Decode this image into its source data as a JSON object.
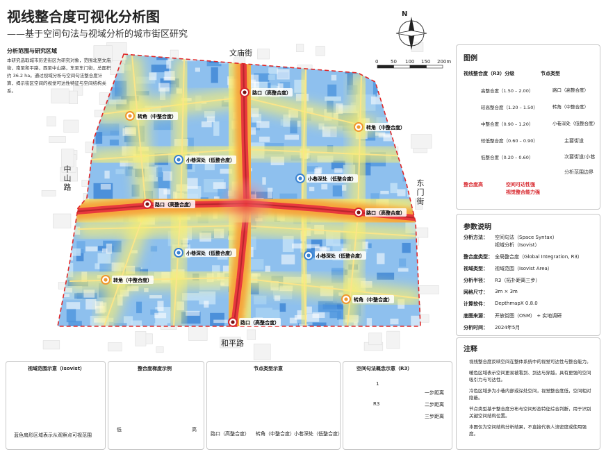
{
  "header": {
    "title": "视线整合度可视化分析图",
    "subtitle": "——基于空间句法与视域分析的城市街区研究"
  },
  "intro": {
    "title": "分析范围与研究区域",
    "text": "本研究选取城市历史街区为研究对象，范围北至文庙街，南至和平路，西至中山路，东至东门街，总面积约 36.2 ha。通过视域分析与空间句法整合度计算，揭示街区空间的视觉可达性特征与空间结构关系。"
  },
  "map": {
    "north": "N",
    "scale": [
      "0",
      "50",
      "100",
      "150",
      "200m"
    ],
    "streets": [
      "文庙街",
      "和平路",
      "中山路",
      "东门街"
    ],
    "nodes": [
      {
        "label": "路口（高整合度）",
        "type": "high"
      },
      {
        "label": "转角（中整合度）",
        "type": "mid"
      },
      {
        "label": "转角（中整合度）",
        "type": "mid"
      },
      {
        "label": "小巷深处（低整合度）",
        "type": "low"
      },
      {
        "label": "小巷深处（低整合度）",
        "type": "low"
      },
      {
        "label": "路口（高整合度）",
        "type": "high"
      },
      {
        "label": "路口（高整合度）",
        "type": "high"
      },
      {
        "label": "小巷深处（低整合度）",
        "type": "low"
      },
      {
        "label": "小巷深处（低整合度）",
        "type": "low"
      },
      {
        "label": "转角（中整合度）",
        "type": "mid"
      },
      {
        "label": "转角（中整合度）",
        "type": "mid"
      },
      {
        "label": "路口（高整合度）",
        "type": "high"
      }
    ]
  },
  "legend": {
    "title": "图例",
    "grade_title": "视线整合度（R3）分级",
    "grades": [
      {
        "label": "高整合度（1.50 – 2.00）",
        "color": "#e8383d"
      },
      {
        "label": "较高整合度（1.20 – 1.50）",
        "color": "#f5a43a"
      },
      {
        "label": "中整合度（0.90 – 1.20）",
        "color": "#f8ee72"
      },
      {
        "label": "较低整合度（0.60 – 0.90）",
        "color": "#9fe2c6"
      },
      {
        "label": "低整合度（0.20 – 0.60）",
        "color": "#4f95dd"
      }
    ],
    "node_title": "节点类型",
    "node_types": [
      {
        "label": "路口（高整合度）",
        "type": "high"
      },
      {
        "label": "转角（中整合度）",
        "type": "mid"
      },
      {
        "label": "小巷深处（低整合度）",
        "type": "low"
      }
    ],
    "lines": [
      "主要街道",
      "次要街道/小巷",
      "分析范围边界"
    ],
    "arrow_from": "整合度高",
    "arrow_to": [
      "空间可达性强",
      "视觉整合能力强"
    ]
  },
  "params": {
    "title": "参数说明",
    "rows": [
      {
        "label": "分析方法：",
        "value": [
          "空间句法（Space Syntax）",
          "视域分析（Isovist）"
        ]
      },
      {
        "label": "整合度类型：",
        "value": [
          "全局整合度（Global Integration, R3）"
        ]
      },
      {
        "label": "视域类型：",
        "value": [
          "视域范围（Isovist Area）"
        ]
      },
      {
        "label": "分析半径：",
        "value": [
          "R3（拓扑距离三步）"
        ]
      },
      {
        "label": "网格尺寸：",
        "value": [
          "3m × 3m"
        ]
      },
      {
        "label": "计算软件：",
        "value": [
          "DepthmapX 0.8.0"
        ]
      },
      {
        "label": "底图来源：",
        "value": [
          "开放街图（OSM） + 实地调研"
        ]
      },
      {
        "label": "分析时间：",
        "value": [
          "2024年5月"
        ]
      }
    ]
  },
  "notes": {
    "title": "注释",
    "items": [
      "视线整合度反映空间在整体系统中的视觉可达性与整合能力。",
      "暖色区域表示空间更易被看到、到达与穿越，具有更强的空间吸引力与可达性。",
      "冷色区域多为小巷内部或深处空间，视觉整合度低，空间相对隐蔽。",
      "节点类型基于整合度分布与空间形态特征综合判断，用于识别关键空间结构位置。",
      "本图仅为空间结构分析结果，不直接代表人流密度或使用强度。"
    ]
  },
  "panels": {
    "isovist": {
      "title": "视域范围示意（Isovist）",
      "caption": "蓝色扇形区域表示从观察点可视范围"
    },
    "gradient": {
      "title": "整合度梯度示例",
      "low": "低",
      "high": "高"
    },
    "nodes": {
      "title": "节点类型示意",
      "captions": [
        "路口（高整合度）",
        "转角（中整合度）",
        "小巷深处（低整合度）"
      ]
    },
    "concept": {
      "title": "空间句法概念示意（R3）",
      "center": "R3",
      "step": "1",
      "rings": [
        "一步距离",
        "二步距离",
        "三步距离"
      ]
    }
  }
}
